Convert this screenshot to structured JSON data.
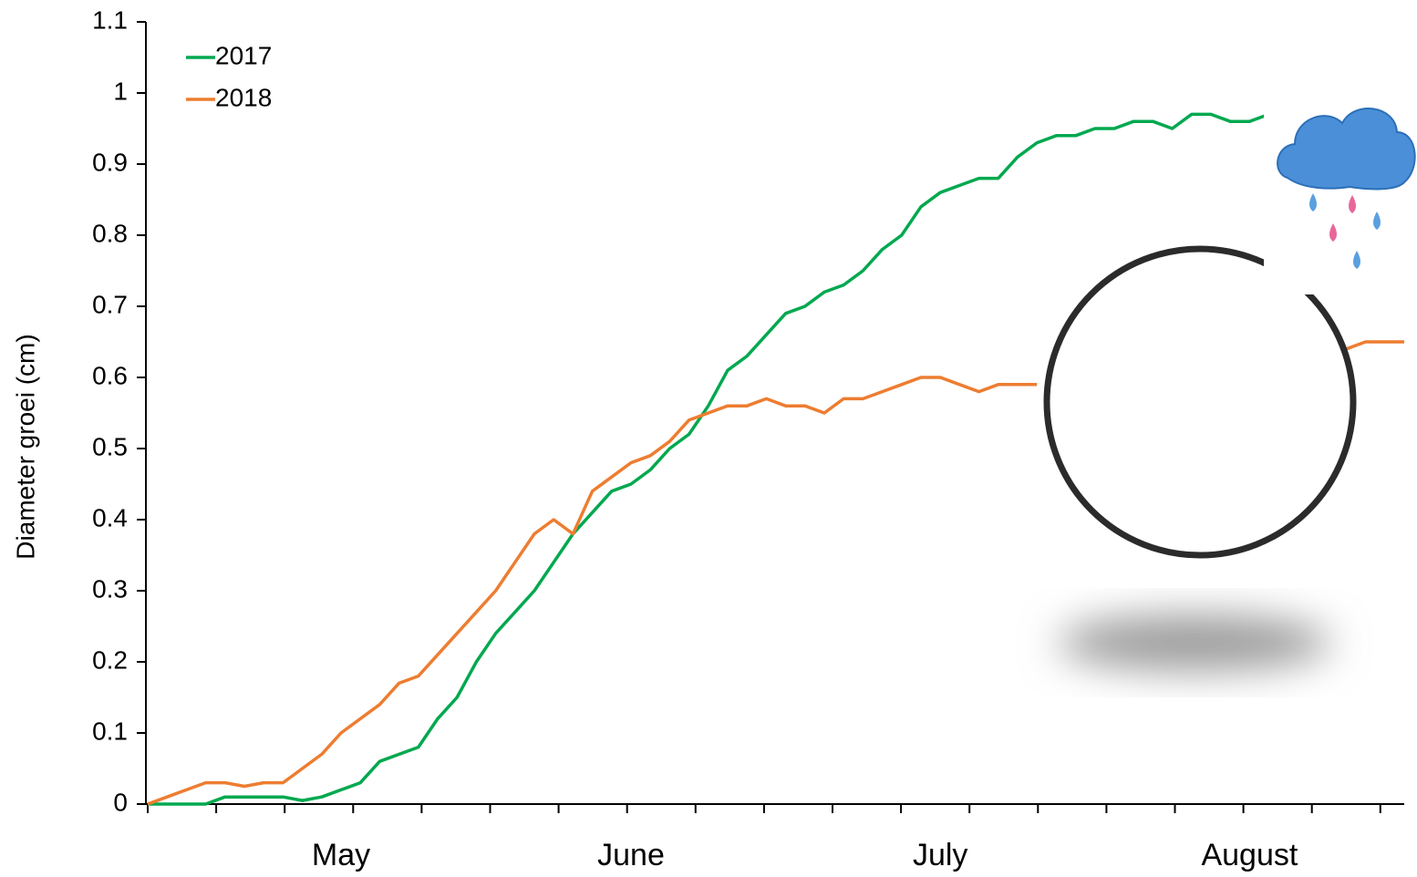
{
  "chart_data": {
    "type": "line",
    "y_label": "Diameter groei (cm)",
    "categories": [
      null,
      null,
      null,
      null,
      null,
      null,
      null,
      null,
      null,
      null,
      "May",
      null,
      null,
      null,
      null,
      null,
      null,
      null,
      null,
      null,
      null,
      null,
      null,
      null,
      null,
      "June",
      null,
      null,
      null,
      null,
      null,
      null,
      null,
      null,
      null,
      null,
      null,
      null,
      null,
      null,
      null,
      "July",
      null,
      null,
      null,
      null,
      null,
      null,
      null,
      null,
      null,
      null,
      null,
      null,
      null,
      null,
      null,
      "August",
      null,
      null,
      null,
      null,
      null,
      null,
      null,
      null
    ],
    "series": [
      {
        "name": "2017",
        "color": "#00a84f",
        "values": [
          0,
          0,
          0,
          0,
          0.01,
          0.01,
          0.01,
          0.01,
          0.005,
          0.01,
          0.02,
          0.03,
          0.06,
          0.07,
          0.08,
          0.12,
          0.15,
          0.2,
          0.24,
          0.27,
          0.3,
          0.34,
          0.38,
          0.41,
          0.44,
          0.45,
          0.47,
          0.5,
          0.52,
          0.56,
          0.61,
          0.63,
          0.66,
          0.69,
          0.7,
          0.72,
          0.73,
          0.75,
          0.78,
          0.8,
          0.84,
          0.86,
          0.87,
          0.88,
          0.88,
          0.91,
          0.93,
          0.94,
          0.94,
          0.95,
          0.95,
          0.96,
          0.96,
          0.95,
          0.97,
          0.97,
          0.96,
          0.96,
          0.97,
          null,
          null,
          null,
          null,
          null,
          null,
          null
        ]
      },
      {
        "name": "2018",
        "color": "#ed7d31",
        "values": [
          0,
          0.01,
          0.02,
          0.03,
          0.03,
          0.025,
          0.03,
          0.03,
          0.05,
          0.07,
          0.1,
          0.12,
          0.14,
          0.17,
          0.18,
          0.21,
          0.24,
          0.27,
          0.3,
          0.34,
          0.38,
          0.4,
          0.38,
          0.44,
          0.46,
          0.48,
          0.49,
          0.51,
          0.54,
          0.55,
          0.56,
          0.56,
          0.57,
          0.56,
          0.56,
          0.55,
          0.57,
          0.57,
          0.58,
          0.59,
          0.6,
          0.6,
          0.59,
          0.58,
          0.59,
          0.59,
          0.59,
          null,
          null,
          null,
          null,
          null,
          null,
          null,
          null,
          null,
          null,
          null,
          null,
          null,
          null,
          null,
          0.64,
          0.65,
          0.65,
          0.65
        ]
      }
    ],
    "ylim": [
      0,
      1.1
    ],
    "yticks": [
      0,
      0.1,
      0.2,
      0.3,
      0.4,
      0.5,
      0.6,
      0.7,
      0.8,
      0.9,
      1,
      1.1
    ],
    "legend": "top-left"
  }
}
